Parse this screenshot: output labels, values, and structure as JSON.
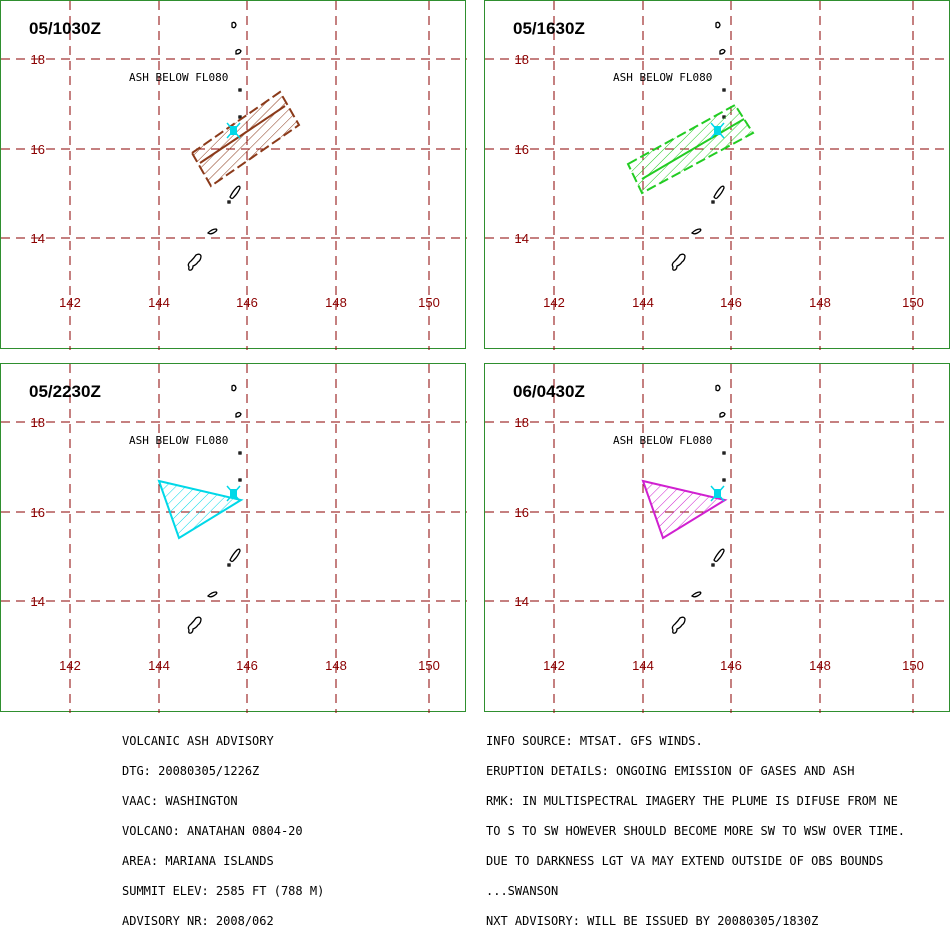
{
  "panels": [
    {
      "time": "05/1030Z",
      "ash_label": "ASH BELOW FL080",
      "plume_color": "#8b3a1a",
      "plume_shape": "elongated-rectangle-northeast"
    },
    {
      "time": "05/1630Z",
      "ash_label": "ASH BELOW FL080",
      "plume_color": "#22cc22",
      "plume_shape": "elongated-rectangle-northeast"
    },
    {
      "time": "05/2230Z",
      "ash_label": "ASH BELOW FL080",
      "plume_color": "#00d8e8",
      "plume_shape": "triangle-west"
    },
    {
      "time": "06/0430Z",
      "ash_label": "ASH BELOW FL080",
      "plume_color": "#d020d0",
      "plume_shape": "triangle-west"
    }
  ],
  "map": {
    "lon_labels": [
      "142",
      "144",
      "146",
      "148",
      "150"
    ],
    "lat_labels": [
      "18",
      "16",
      "14"
    ],
    "grid_color": "#8b0000",
    "label_color": "#8b0000",
    "volcano_marker_color": "#00d8e8"
  },
  "advisory_left": [
    "VOLCANIC ASH ADVISORY",
    "DTG: 20080305/1226Z",
    "VAAC: WASHINGTON",
    "VOLCANO: ANATAHAN 0804-20",
    "AREA: MARIANA ISLANDS",
    "SUMMIT ELEV: 2585 FT (788 M)",
    "ADVISORY NR: 2008/062"
  ],
  "advisory_right": [
    "INFO SOURCE: MTSAT. GFS WINDS.",
    "ERUPTION DETAILS: ONGOING EMISSION OF GASES AND ASH",
    "RMK: IN MULTISPECTRAL IMAGERY THE PLUME IS DIFUSE FROM NE",
    "TO S TO SW HOWEVER SHOULD BECOME MORE SW TO WSW OVER TIME.",
    "DUE TO DARKNESS LGT VA MAY EXTEND OUTSIDE OF OBS BOUNDS",
    "...SWANSON",
    "NXT ADVISORY: WILL BE ISSUED BY 20080305/1830Z"
  ]
}
